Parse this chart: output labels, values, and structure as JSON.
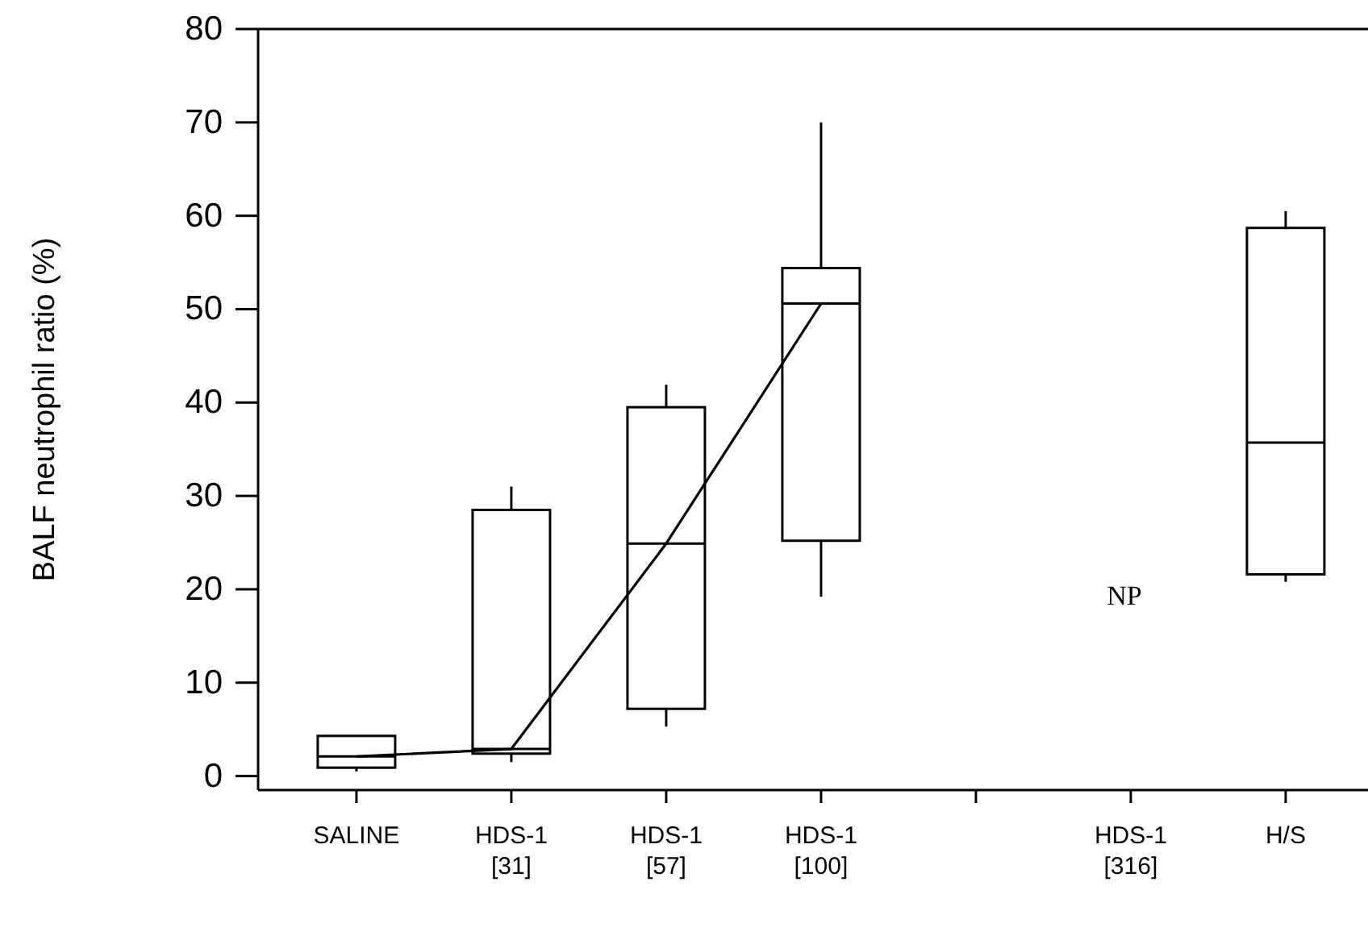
{
  "chart_data": {
    "type": "box",
    "ylabel": "BALF neutrophil ratio (%)",
    "categories": [
      "SALINE",
      "HDS-1\n[31]",
      "HDS-1\n[57]",
      "HDS-1\n[100]",
      null,
      "HDS-1\n[316]",
      "H/S"
    ],
    "ylim": [
      -1.5,
      80
    ],
    "yticks": [
      0,
      10,
      20,
      30,
      40,
      50,
      60,
      70,
      80
    ],
    "grid": false,
    "series": [
      {
        "color": "#000000",
        "boxes": [
          {
            "low": 0.5,
            "q1": 0.9,
            "median": 2.1,
            "q3": 4.3,
            "high": 4.3
          },
          {
            "low": 1.5,
            "q1": 2.4,
            "median": 2.9,
            "q3": 28.5,
            "high": 31
          },
          {
            "low": 5.3,
            "q1": 7.2,
            "median": 24.9,
            "q3": 39.5,
            "high": 41.9
          },
          {
            "low": 19.2,
            "q1": 25.2,
            "median": 50.6,
            "q3": 54.4,
            "high": 70
          },
          null,
          null,
          {
            "low": 20.8,
            "q1": 21.6,
            "median": 35.7,
            "q3": 58.7,
            "high": 60.5
          }
        ]
      },
      {
        "type": "line",
        "color": "#000000",
        "marker": "none",
        "line_style": "solid",
        "values": [
          2.1,
          2.9,
          24.9,
          50.6,
          null,
          null,
          null
        ]
      }
    ],
    "annotations": [
      "NP"
    ]
  }
}
